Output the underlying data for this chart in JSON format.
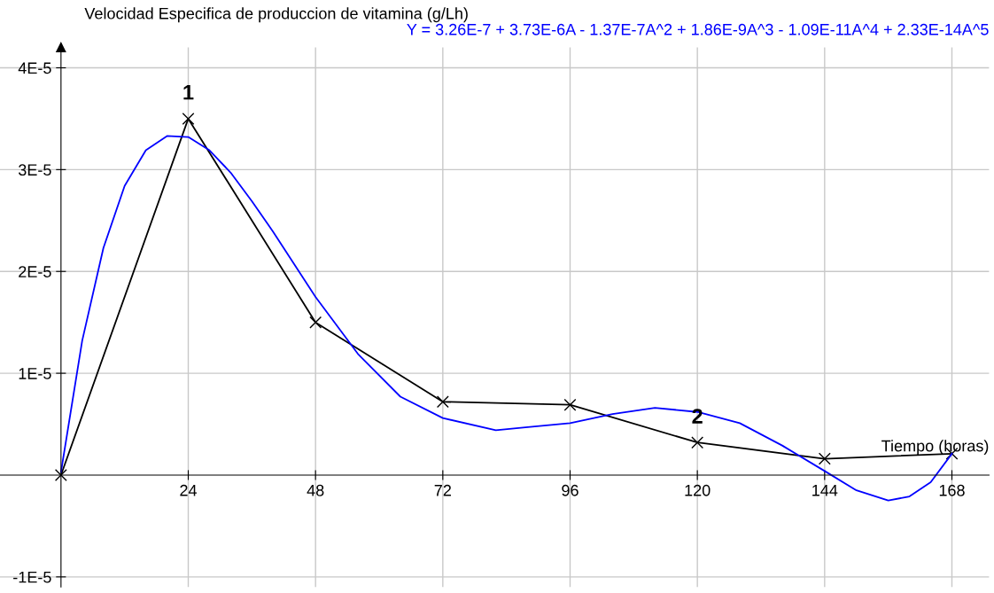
{
  "chart_data": {
    "type": "line",
    "title": "Velocidad Especifica de produccion de vitamina (g/Lh)",
    "xlabel": "Tiempo (horas)",
    "x": [
      0,
      24,
      48,
      72,
      96,
      120,
      144,
      168
    ],
    "series": [
      {
        "color": "#000000",
        "marker": "cross",
        "values": [
          0,
          3.5e-05,
          1.5e-05,
          7.2e-06,
          6.9e-06,
          3.2e-06,
          1.6e-06,
          2.1e-06
        ]
      },
      {
        "color": "#0000ff",
        "marker": "none",
        "x": [
          0,
          4,
          8,
          12,
          16,
          20,
          24,
          28,
          32,
          36,
          40,
          48,
          56,
          64,
          72,
          82,
          88,
          96,
          104,
          112,
          120,
          128,
          136,
          144,
          150,
          156,
          160,
          164,
          168
        ],
        "values": [
          3e-07,
          1.32e-05,
          2.23e-05,
          2.84e-05,
          3.19e-05,
          3.33e-05,
          3.32e-05,
          3.19e-05,
          2.97e-05,
          2.69e-05,
          2.39e-05,
          1.75e-05,
          1.19e-05,
          7.7e-06,
          5.6e-06,
          4.4e-06,
          4.7e-06,
          5.1e-06,
          6e-06,
          6.6e-06,
          6.2e-06,
          5.1e-06,
          2.9e-06,
          4e-07,
          -1.5e-06,
          -2.5e-06,
          -2.1e-06,
          -7e-07,
          2.1e-06
        ]
      }
    ],
    "annotations": [
      {
        "text": "1",
        "x": 24,
        "y": 3.5e-05
      },
      {
        "text": "2",
        "x": 120,
        "y": 3.2e-06
      },
      "Y = 3.26E-7 + 3.73E-6A - 1.37E-7A^2 + 1.86E-9A^3 - 1.09E-11A^4 + 2.33E-14A^5"
    ],
    "xlim": [
      -11.5,
      175
    ],
    "ylim": [
      -1.1e-05,
      4.2e-05
    ],
    "xticks": [
      24,
      48,
      72,
      96,
      120,
      144,
      168
    ],
    "yticks": [
      {
        "value": -1e-05,
        "label": "-1E-5"
      },
      {
        "value": 1e-05,
        "label": "1E-5"
      },
      {
        "value": 2e-05,
        "label": "2E-5"
      },
      {
        "value": 3e-05,
        "label": "3E-5"
      },
      {
        "value": 4e-05,
        "label": "4E-5"
      }
    ],
    "grid": true,
    "line_style": "solid"
  }
}
